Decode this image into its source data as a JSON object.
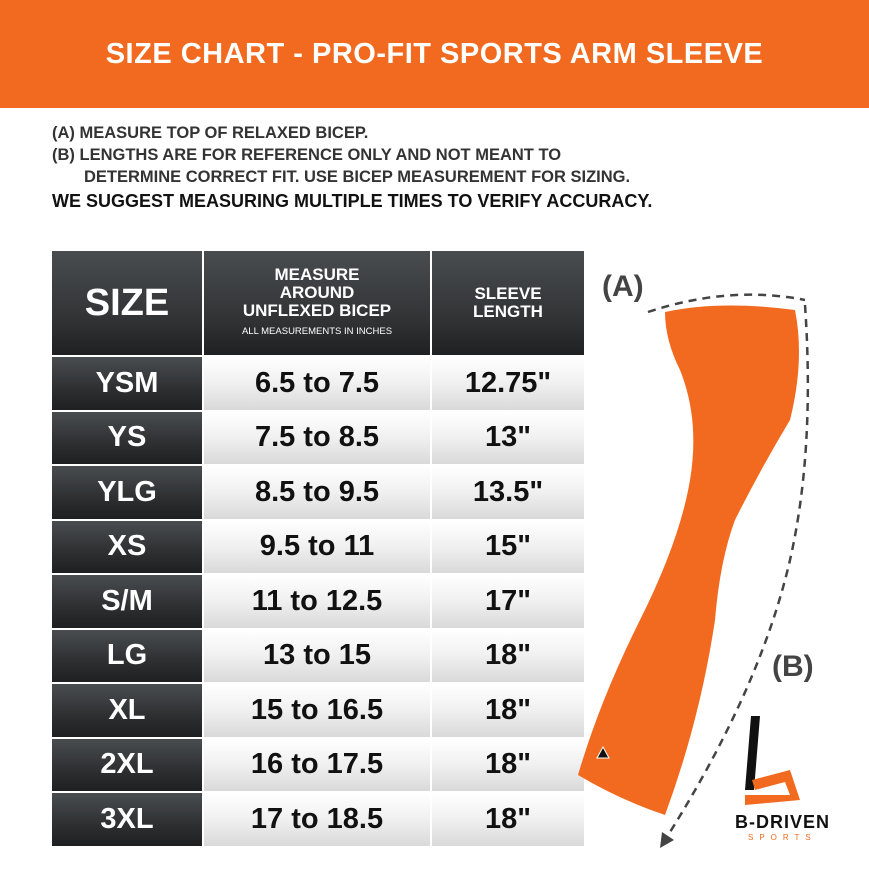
{
  "title": "SIZE CHART - PRO-FIT SPORTS ARM SLEEVE",
  "notes": [
    "(A) MEASURE TOP OF RELAXED BICEP.",
    "(B) LENGTHS ARE FOR REFERENCE ONLY AND NOT MEANT TO",
    "DETERMINE CORRECT FIT. USE BICEP MEASUREMENT FOR SIZING.",
    "WE SUGGEST MEASURING MULTIPLE TIMES TO VERIFY ACCURACY."
  ],
  "table": {
    "headers": {
      "size": "SIZE",
      "measure_1": "MEASURE",
      "measure_2": "AROUND",
      "measure_3": "UNFLEXED BICEP",
      "measure_sub": "ALL MEASUREMENTS IN INCHES",
      "length_1": "SLEEVE",
      "length_2": "LENGTH"
    },
    "rows": [
      {
        "size": "YSM",
        "bicep": "6.5 to 7.5",
        "length": "12.75\""
      },
      {
        "size": "YS",
        "bicep": "7.5 to 8.5",
        "length": "13\""
      },
      {
        "size": "YLG",
        "bicep": "8.5 to 9.5",
        "length": "13.5\""
      },
      {
        "size": "XS",
        "bicep": "9.5 to 11",
        "length": "15\""
      },
      {
        "size": "S/M",
        "bicep": "11 to 12.5",
        "length": "17\""
      },
      {
        "size": "LG",
        "bicep": "13 to 15",
        "length": "18\""
      },
      {
        "size": "XL",
        "bicep": "15 to 16.5",
        "length": "18\""
      },
      {
        "size": "2XL",
        "bicep": "16 to 17.5",
        "length": "18\""
      },
      {
        "size": "3XL",
        "bicep": "17 to 18.5",
        "length": "18\""
      }
    ]
  },
  "diagram": {
    "label_a": "(A)",
    "label_b": "(B)"
  },
  "brand": {
    "name": "B-DRIVEN",
    "sub": "SPORTS"
  },
  "colors": {
    "accent": "#f26a1f",
    "header_dark": "#2f3133"
  }
}
